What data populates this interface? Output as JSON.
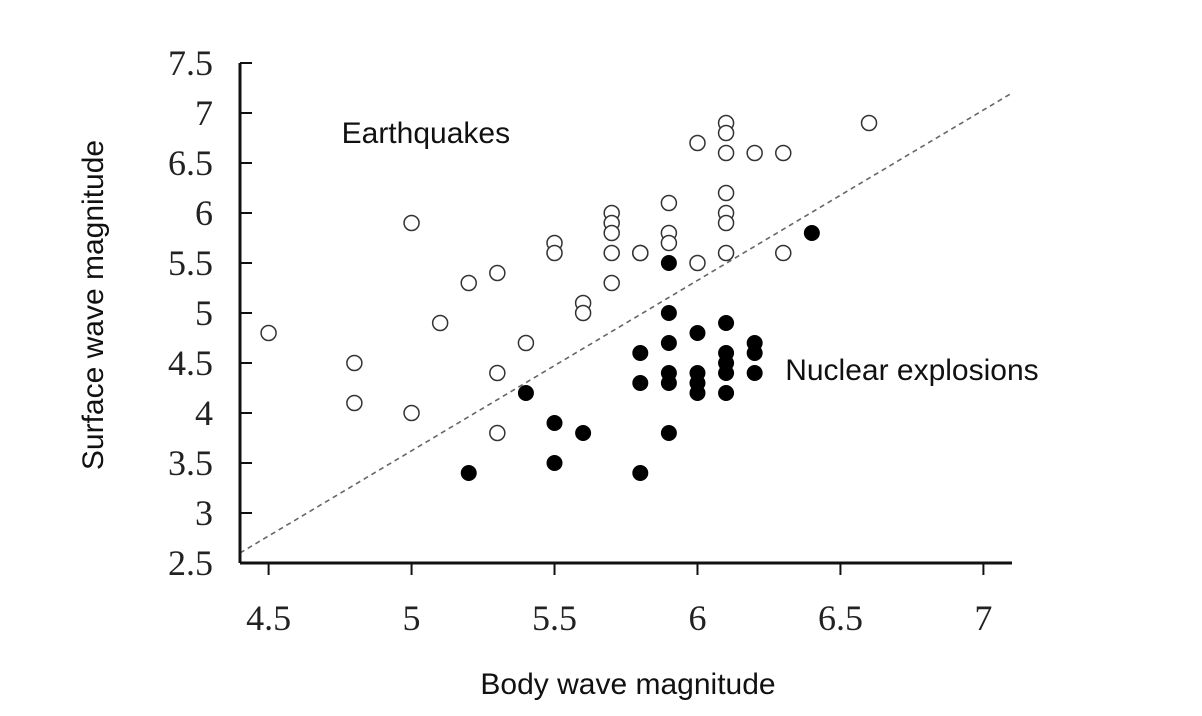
{
  "chart_data": {
    "type": "scatter",
    "title": "",
    "xlabel": "Body wave magnitude",
    "ylabel": "Surface wave magnitude",
    "xlim": [
      4.4,
      7.1
    ],
    "ylim": [
      2.5,
      7.5
    ],
    "xticks": [
      4.5,
      5,
      5.5,
      6,
      6.5,
      7
    ],
    "xtick_labels": [
      "4.5",
      "5",
      "5.5",
      "6",
      "6.5",
      "7"
    ],
    "yticks": [
      2.5,
      3,
      3.5,
      4,
      4.5,
      5,
      5.5,
      6,
      6.5,
      7,
      7.5
    ],
    "ytick_labels": [
      "2.5",
      "3",
      "3.5",
      "4",
      "4.5",
      "5",
      "5.5",
      "6",
      "6.5",
      "7",
      "7.5"
    ],
    "grid": false,
    "series": [
      {
        "name": "Earthquakes",
        "marker": "open-circle",
        "color": "#333333",
        "points": [
          [
            4.5,
            4.8
          ],
          [
            4.8,
            4.5
          ],
          [
            4.8,
            4.1
          ],
          [
            5.0,
            5.9
          ],
          [
            5.0,
            4.0
          ],
          [
            5.1,
            4.9
          ],
          [
            5.2,
            5.3
          ],
          [
            5.3,
            5.4
          ],
          [
            5.3,
            4.4
          ],
          [
            5.3,
            3.8
          ],
          [
            5.4,
            4.7
          ],
          [
            5.5,
            5.7
          ],
          [
            5.5,
            5.6
          ],
          [
            5.6,
            5.1
          ],
          [
            5.6,
            5.0
          ],
          [
            5.7,
            6.0
          ],
          [
            5.7,
            5.9
          ],
          [
            5.7,
            5.8
          ],
          [
            5.7,
            5.6
          ],
          [
            5.7,
            5.3
          ],
          [
            5.8,
            5.6
          ],
          [
            5.8,
            5.6
          ],
          [
            5.9,
            6.1
          ],
          [
            5.9,
            5.8
          ],
          [
            5.9,
            5.7
          ],
          [
            6.0,
            6.7
          ],
          [
            6.0,
            5.5
          ],
          [
            6.1,
            6.9
          ],
          [
            6.1,
            6.8
          ],
          [
            6.1,
            6.6
          ],
          [
            6.1,
            6.2
          ],
          [
            6.1,
            6.0
          ],
          [
            6.1,
            5.9
          ],
          [
            6.1,
            5.6
          ],
          [
            6.2,
            6.6
          ],
          [
            6.3,
            6.6
          ],
          [
            6.3,
            5.6
          ],
          [
            6.6,
            6.9
          ]
        ]
      },
      {
        "name": "Nuclear explosions",
        "marker": "filled-circle",
        "color": "#000000",
        "points": [
          [
            5.2,
            3.4
          ],
          [
            5.4,
            4.2
          ],
          [
            5.5,
            3.9
          ],
          [
            5.5,
            3.5
          ],
          [
            5.6,
            3.8
          ],
          [
            5.8,
            4.6
          ],
          [
            5.8,
            4.3
          ],
          [
            5.8,
            3.4
          ],
          [
            5.9,
            5.5
          ],
          [
            5.9,
            5.0
          ],
          [
            5.9,
            4.7
          ],
          [
            5.9,
            4.4
          ],
          [
            5.9,
            4.3
          ],
          [
            5.9,
            3.8
          ],
          [
            6.0,
            4.8
          ],
          [
            6.0,
            4.4
          ],
          [
            6.0,
            4.3
          ],
          [
            6.0,
            4.2
          ],
          [
            6.1,
            4.9
          ],
          [
            6.1,
            4.6
          ],
          [
            6.1,
            4.5
          ],
          [
            6.1,
            4.4
          ],
          [
            6.1,
            4.2
          ],
          [
            6.2,
            4.7
          ],
          [
            6.2,
            4.6
          ],
          [
            6.2,
            4.4
          ],
          [
            6.4,
            5.8
          ]
        ]
      }
    ],
    "divider_line": {
      "style": "dashed",
      "from": [
        4.4,
        2.6
      ],
      "to": [
        7.1,
        7.2
      ]
    },
    "annotations": [
      {
        "text": "Earthquakes",
        "x": 5.05,
        "y": 6.7
      },
      {
        "text": "Nuclear explosions",
        "x": 6.75,
        "y": 4.33
      }
    ]
  }
}
